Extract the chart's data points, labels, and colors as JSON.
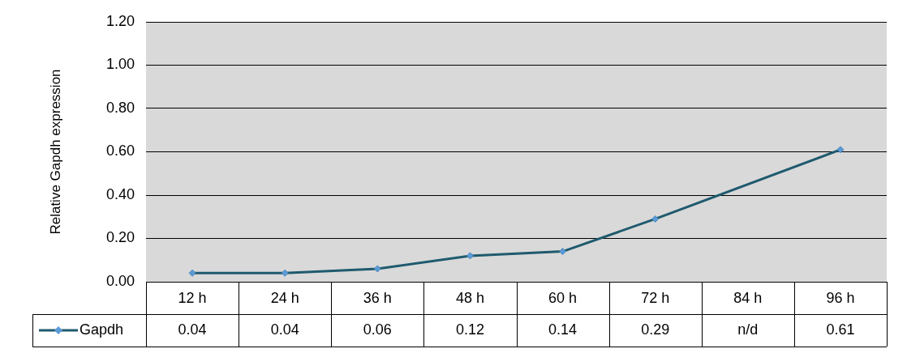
{
  "chart_data": {
    "type": "line",
    "ylabel": "Relative Gapdh expression",
    "categories": [
      "12 h",
      "24 h",
      "36 h",
      "48 h",
      "60 h",
      "72 h",
      "84 h",
      "96 h"
    ],
    "series": [
      {
        "name": "Gapdh",
        "color": "#1f5a6e",
        "values": [
          0.04,
          0.04,
          0.06,
          0.12,
          0.14,
          0.29,
          null,
          0.61
        ],
        "value_labels": [
          "0.04",
          "0.04",
          "0.06",
          "0.12",
          "0.14",
          "0.29",
          "n/d",
          "0.61"
        ]
      }
    ],
    "ylim": [
      0,
      1.2
    ],
    "yticks": [
      {
        "value": 0,
        "label": "0.00"
      },
      {
        "value": 0.2,
        "label": "0.20"
      },
      {
        "value": 0.4,
        "label": "0.40"
      },
      {
        "value": 0.6,
        "label": "0.60"
      },
      {
        "value": 0.8,
        "label": "0.80"
      },
      {
        "value": 1,
        "label": "1.00"
      },
      {
        "value": 1.2,
        "label": "1.20"
      }
    ],
    "grid": "y",
    "legend": "bottom left",
    "marker": "diamond",
    "line_style": "solid"
  }
}
